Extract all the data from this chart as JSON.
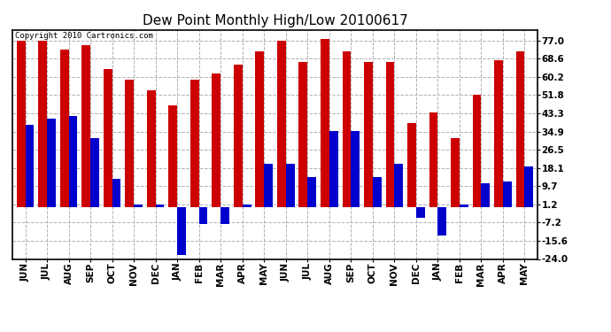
{
  "title": "Dew Point Monthly High/Low 20100617",
  "copyright": "Copyright 2010 Cartronics.com",
  "months": [
    "JUN",
    "JUL",
    "AUG",
    "SEP",
    "OCT",
    "NOV",
    "DEC",
    "JAN",
    "FEB",
    "MAR",
    "APR",
    "MAY",
    "JUN",
    "JUL",
    "AUG",
    "SEP",
    "OCT",
    "NOV",
    "DEC",
    "JAN",
    "FEB",
    "MAR",
    "APR",
    "MAY"
  ],
  "highs": [
    77,
    77,
    73,
    75,
    64,
    59,
    54,
    47,
    59,
    62,
    66,
    72,
    77,
    67,
    78,
    72,
    67,
    67,
    39,
    44,
    32,
    52,
    68,
    72
  ],
  "lows": [
    38,
    41,
    42,
    32,
    13,
    1,
    1,
    -22,
    -8,
    -8,
    1,
    20,
    20,
    14,
    35,
    35,
    14,
    20,
    -5,
    -13,
    1,
    11,
    12,
    19
  ],
  "high_color": "#cc0000",
  "low_color": "#0000cc",
  "bg_color": "#ffffff",
  "grid_color": "#b0b0b0",
  "yticks": [
    77.0,
    68.6,
    60.2,
    51.8,
    43.3,
    34.9,
    26.5,
    18.1,
    9.7,
    1.2,
    -7.2,
    -15.6,
    -24.0
  ],
  "ymin": -24.0,
  "ymax": 82.0,
  "title_fontsize": 11,
  "tick_fontsize": 7.5,
  "bar_width": 0.4
}
